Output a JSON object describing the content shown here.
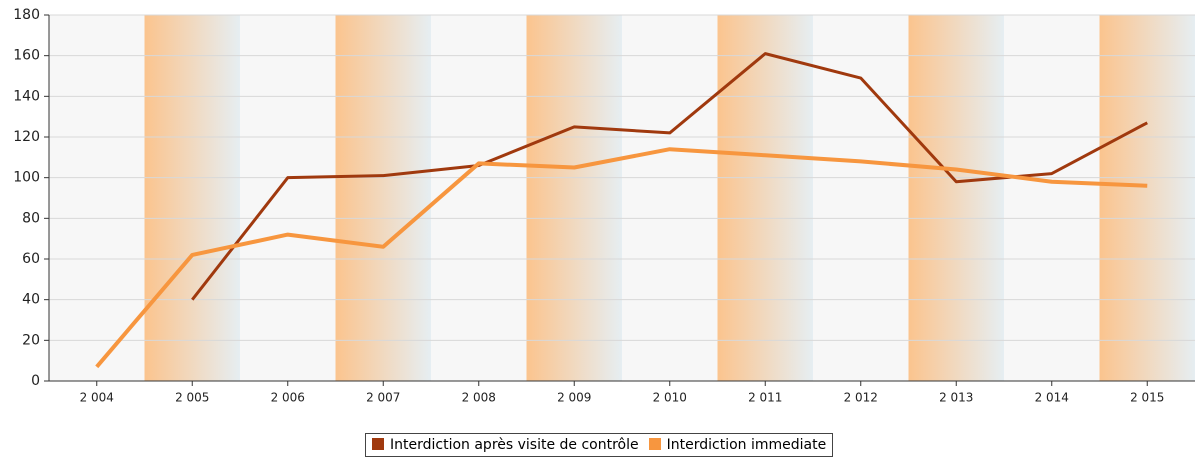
{
  "chart_data": {
    "type": "line",
    "categories": [
      "2 004",
      "2 005",
      "2 006",
      "2 007",
      "2 008",
      "2 009",
      "2 010",
      "2 011",
      "2 012",
      "2 013",
      "2 014",
      "2 015"
    ],
    "series": [
      {
        "name": "Interdiction après visite de contrôle",
        "color": "#a0390e",
        "values": [
          null,
          40,
          100,
          101,
          106,
          125,
          122,
          161,
          149,
          98,
          102,
          127
        ]
      },
      {
        "name": "Interdiction immediate",
        "color": "#f7963f",
        "values": [
          7,
          62,
          72,
          66,
          107,
          105,
          114,
          111,
          108,
          104,
          98,
          96
        ]
      }
    ],
    "ylim": [
      0,
      180
    ],
    "yticks": [
      0,
      20,
      40,
      60,
      80,
      100,
      120,
      140,
      160,
      180
    ],
    "grid": true,
    "legend": "bottom"
  }
}
